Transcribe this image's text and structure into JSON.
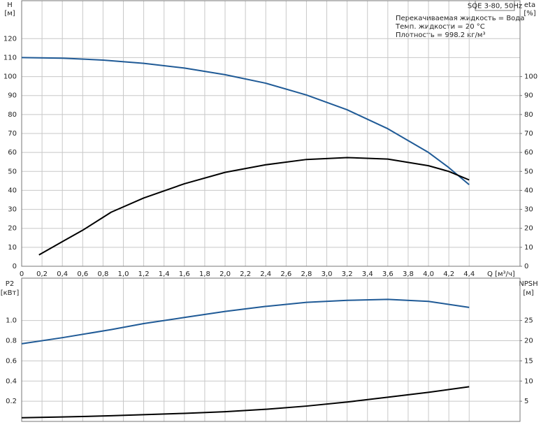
{
  "chart_data": [
    {
      "type": "line",
      "title": "SQE 3-80, 50Hz",
      "notes": [
        "Перекачиваемая жидкость = Вода",
        "Темп. жидкости = 20 °C",
        "Плотность = 998.2 кг/м³"
      ],
      "ylabel": "H",
      "yunit": "[м]",
      "y2label": "eta",
      "y2unit": "[%]",
      "xlabel": "Q [м³/ч]",
      "xlim": [
        0,
        4.9
      ],
      "ylim": [
        0,
        140
      ],
      "y2lim": [
        0,
        140
      ],
      "xticks": [
        0,
        {
          "value": 0.2,
          "label": "0,2"
        },
        {
          "value": 0.4,
          "label": "0,4"
        },
        {
          "value": 0.6,
          "label": "0,6"
        },
        {
          "value": 0.8,
          "label": "0,8"
        },
        {
          "value": 1.0,
          "label": "1,0"
        },
        {
          "value": 1.2,
          "label": "1,2"
        },
        {
          "value": 1.4,
          "label": "1,4"
        },
        {
          "value": 1.6,
          "label": "1,6"
        },
        {
          "value": 1.8,
          "label": "1,8"
        },
        {
          "value": 2.0,
          "label": "2,0"
        },
        {
          "value": 2.2,
          "label": "2,2"
        },
        {
          "value": 2.4,
          "label": "2,4"
        },
        {
          "value": 2.6,
          "label": "2,6"
        },
        {
          "value": 2.8,
          "label": "2,8"
        },
        {
          "value": 3.0,
          "label": "3,0"
        },
        {
          "value": 3.2,
          "label": "3,2"
        },
        {
          "value": 3.4,
          "label": "3,4"
        },
        {
          "value": 3.6,
          "label": "3,6"
        },
        {
          "value": 3.8,
          "label": "3,8"
        },
        {
          "value": 4.0,
          "label": "4,0"
        },
        {
          "value": 4.2,
          "label": "4,2"
        },
        {
          "value": 4.4,
          "label": "4,4"
        }
      ],
      "yticks": [
        0,
        10,
        20,
        30,
        40,
        50,
        60,
        70,
        80,
        90,
        100,
        110,
        120
      ],
      "y2ticks": [
        0,
        10,
        20,
        30,
        40,
        50,
        60,
        70,
        80,
        90,
        100
      ],
      "grid": true,
      "series": [
        {
          "color": "#1f5a96",
          "axis": "y",
          "x": [
            0,
            0.4,
            0.8,
            1.2,
            1.6,
            2.0,
            2.4,
            2.8,
            3.2,
            3.6,
            4.0,
            4.2,
            4.4
          ],
          "values": [
            110,
            109.7,
            108.7,
            107,
            104.5,
            101,
            96.5,
            90.3,
            82.5,
            72.5,
            60,
            52,
            43
          ]
        },
        {
          "color": "#000000",
          "axis": "y2",
          "x": [
            0.17,
            0.4,
            0.6,
            0.88,
            1.2,
            1.6,
            2.0,
            2.4,
            2.8,
            3.2,
            3.6,
            4.0,
            4.2,
            4.4
          ],
          "values": [
            6,
            13,
            19,
            28.5,
            36,
            43.5,
            49.5,
            53.5,
            56.3,
            57.3,
            56.5,
            53,
            50,
            45.5
          ]
        }
      ]
    },
    {
      "type": "line",
      "ylabel": "P2",
      "yunit": "[кВт]",
      "y2label": "NPSH",
      "y2unit": "[м]",
      "xlim": [
        0,
        4.9
      ],
      "ylim": [
        0,
        1.42
      ],
      "y2lim": [
        0,
        35.5
      ],
      "yticks": [
        0.2,
        0.4,
        0.6,
        0.8,
        {
          "value": 1.0,
          "label": "1.0"
        }
      ],
      "y2ticks": [
        5,
        10,
        15,
        20,
        25
      ],
      "grid": true,
      "series": [
        {
          "color": "#1f5a96",
          "axis": "y",
          "x": [
            0,
            0.4,
            0.88,
            1.2,
            1.6,
            2.0,
            2.4,
            2.8,
            3.2,
            3.6,
            4.0,
            4.4
          ],
          "values": [
            0.77,
            0.83,
            0.91,
            0.97,
            1.03,
            1.09,
            1.14,
            1.18,
            1.2,
            1.21,
            1.19,
            1.13
          ]
        },
        {
          "color": "#000000",
          "axis": "y2",
          "x": [
            0,
            0.4,
            0.88,
            1.6,
            2.0,
            2.4,
            2.8,
            3.2,
            3.6,
            4.0,
            4.4
          ],
          "values": [
            0.9,
            1.1,
            1.4,
            2.0,
            2.4,
            3.0,
            3.8,
            4.8,
            6.0,
            7.2,
            8.6
          ]
        }
      ]
    }
  ]
}
